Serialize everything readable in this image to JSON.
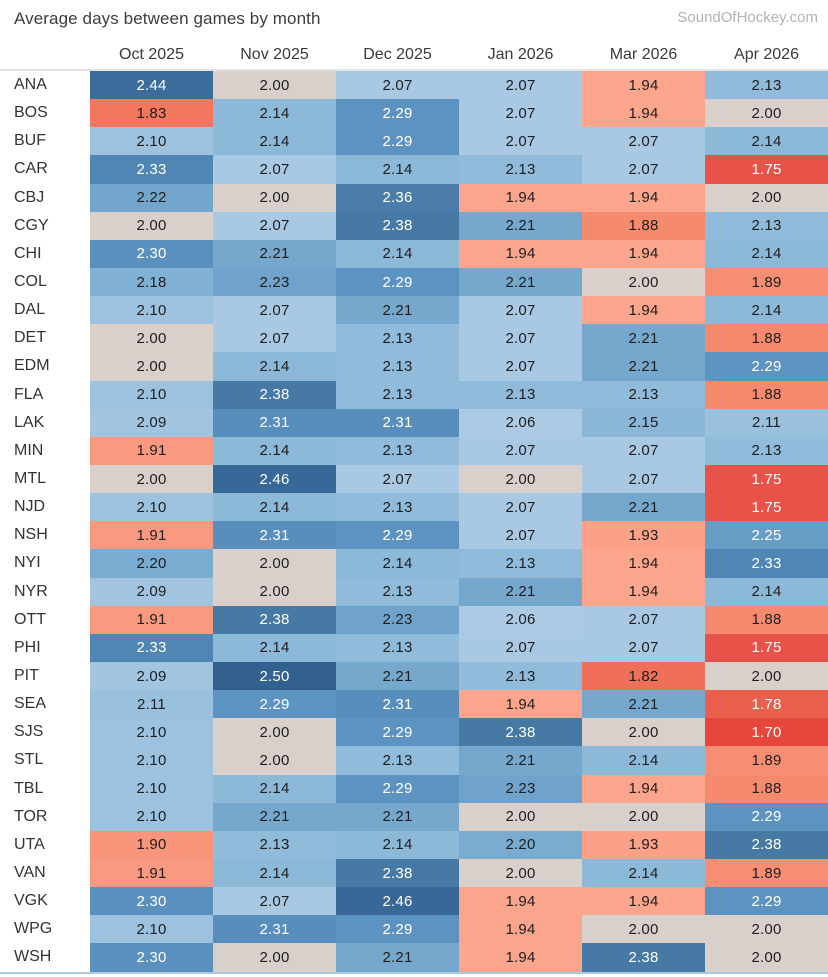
{
  "header": {
    "title": "Average days between games by month",
    "source": "SoundOfHockey.com"
  },
  "chart_data": {
    "type": "heatmap",
    "title": "Average days between games by month",
    "columns": [
      "Oct 2025",
      "Nov 2025",
      "Dec 2025",
      "Jan 2026",
      "Mar 2026",
      "Apr 2026"
    ],
    "rows": [
      "ANA",
      "BOS",
      "BUF",
      "CAR",
      "CBJ",
      "CGY",
      "CHI",
      "COL",
      "DAL",
      "DET",
      "EDM",
      "FLA",
      "LAK",
      "MIN",
      "MTL",
      "NJD",
      "NSH",
      "NYI",
      "NYR",
      "OTT",
      "PHI",
      "PIT",
      "SEA",
      "SJS",
      "STL",
      "TBL",
      "TOR",
      "UTA",
      "VAN",
      "VGK",
      "WPG",
      "WSH"
    ],
    "values": [
      [
        2.44,
        2.0,
        2.07,
        2.07,
        1.94,
        2.13
      ],
      [
        1.83,
        2.14,
        2.29,
        2.07,
        1.94,
        2.0
      ],
      [
        2.1,
        2.14,
        2.29,
        2.07,
        2.07,
        2.14
      ],
      [
        2.33,
        2.07,
        2.14,
        2.13,
        2.07,
        1.75
      ],
      [
        2.22,
        2.0,
        2.36,
        1.94,
        1.94,
        2.0
      ],
      [
        2.0,
        2.07,
        2.38,
        2.21,
        1.88,
        2.13
      ],
      [
        2.3,
        2.21,
        2.14,
        1.94,
        1.94,
        2.14
      ],
      [
        2.18,
        2.23,
        2.29,
        2.21,
        2.0,
        1.89
      ],
      [
        2.1,
        2.07,
        2.21,
        2.07,
        1.94,
        2.14
      ],
      [
        2.0,
        2.07,
        2.13,
        2.07,
        2.21,
        1.88
      ],
      [
        2.0,
        2.14,
        2.13,
        2.07,
        2.21,
        2.29
      ],
      [
        2.1,
        2.38,
        2.13,
        2.13,
        2.13,
        1.88
      ],
      [
        2.09,
        2.31,
        2.31,
        2.06,
        2.15,
        2.11
      ],
      [
        1.91,
        2.14,
        2.13,
        2.07,
        2.07,
        2.13
      ],
      [
        2.0,
        2.46,
        2.07,
        2.0,
        2.07,
        1.75
      ],
      [
        2.1,
        2.14,
        2.13,
        2.07,
        2.21,
        1.75
      ],
      [
        1.91,
        2.31,
        2.29,
        2.07,
        1.93,
        2.25
      ],
      [
        2.2,
        2.0,
        2.14,
        2.13,
        1.94,
        2.33
      ],
      [
        2.09,
        2.0,
        2.13,
        2.21,
        1.94,
        2.14
      ],
      [
        1.91,
        2.38,
        2.23,
        2.06,
        2.07,
        1.88
      ],
      [
        2.33,
        2.14,
        2.13,
        2.07,
        2.07,
        1.75
      ],
      [
        2.09,
        2.5,
        2.21,
        2.13,
        1.82,
        2.0
      ],
      [
        2.11,
        2.29,
        2.31,
        1.94,
        2.21,
        1.78
      ],
      [
        2.1,
        2.0,
        2.29,
        2.38,
        2.0,
        1.7
      ],
      [
        2.1,
        2.0,
        2.13,
        2.21,
        2.14,
        1.89
      ],
      [
        2.1,
        2.14,
        2.29,
        2.23,
        1.94,
        1.88
      ],
      [
        2.1,
        2.21,
        2.21,
        2.0,
        2.0,
        2.29
      ],
      [
        1.9,
        2.13,
        2.14,
        2.2,
        1.93,
        2.38
      ],
      [
        1.91,
        2.14,
        2.38,
        2.0,
        2.14,
        1.89
      ],
      [
        2.3,
        2.07,
        2.46,
        1.94,
        1.94,
        2.29
      ],
      [
        2.1,
        2.31,
        2.29,
        1.94,
        2.0,
        2.0
      ],
      [
        2.3,
        2.0,
        2.21,
        1.94,
        2.38,
        2.0
      ]
    ],
    "value_format": "0.00",
    "legend_position": "none",
    "color_scale": {
      "low": "#e6473d",
      "mid": "#d9d0cc",
      "high": "#32618f",
      "domain": [
        1.7,
        2.0,
        2.5
      ],
      "white_text_low": 1.78,
      "white_text_high": 2.25,
      "text_dark": "#1e1e1e",
      "text_light": "#ffffff"
    },
    "cell_colors": {
      "1.70": "#e6473d",
      "1.75": "#e75348",
      "1.78": "#ea5f4d",
      "1.82": "#f06f58",
      "1.83": "#f3765d",
      "1.88": "#f68a6e",
      "1.89": "#f78e74",
      "1.90": "#f8957a",
      "1.91": "#f99a80",
      "1.93": "#faa187",
      "1.94": "#fba68c",
      "2.00": "#d9d0cc",
      "2.06": "#accae4",
      "2.07": "#a9c8e3",
      "2.09": "#a1c4e0",
      "2.10": "#9dc2df",
      "2.11": "#99c0dd",
      "2.13": "#91bbda",
      "2.14": "#8db9d9",
      "2.15": "#8ab7d8",
      "2.18": "#81b1d4",
      "2.20": "#7aabd0",
      "2.21": "#76a8ce",
      "2.22": "#73a6cc",
      "2.23": "#70a3cb",
      "2.25": "#679cc5",
      "2.29": "#5d93c0",
      "2.30": "#5a90be",
      "2.31": "#588ebc",
      "2.33": "#5086b3",
      "2.36": "#4a7da9",
      "2.38": "#4679a3",
      "2.44": "#3b6c9c",
      "2.46": "#386897",
      "2.50": "#32618f"
    }
  }
}
